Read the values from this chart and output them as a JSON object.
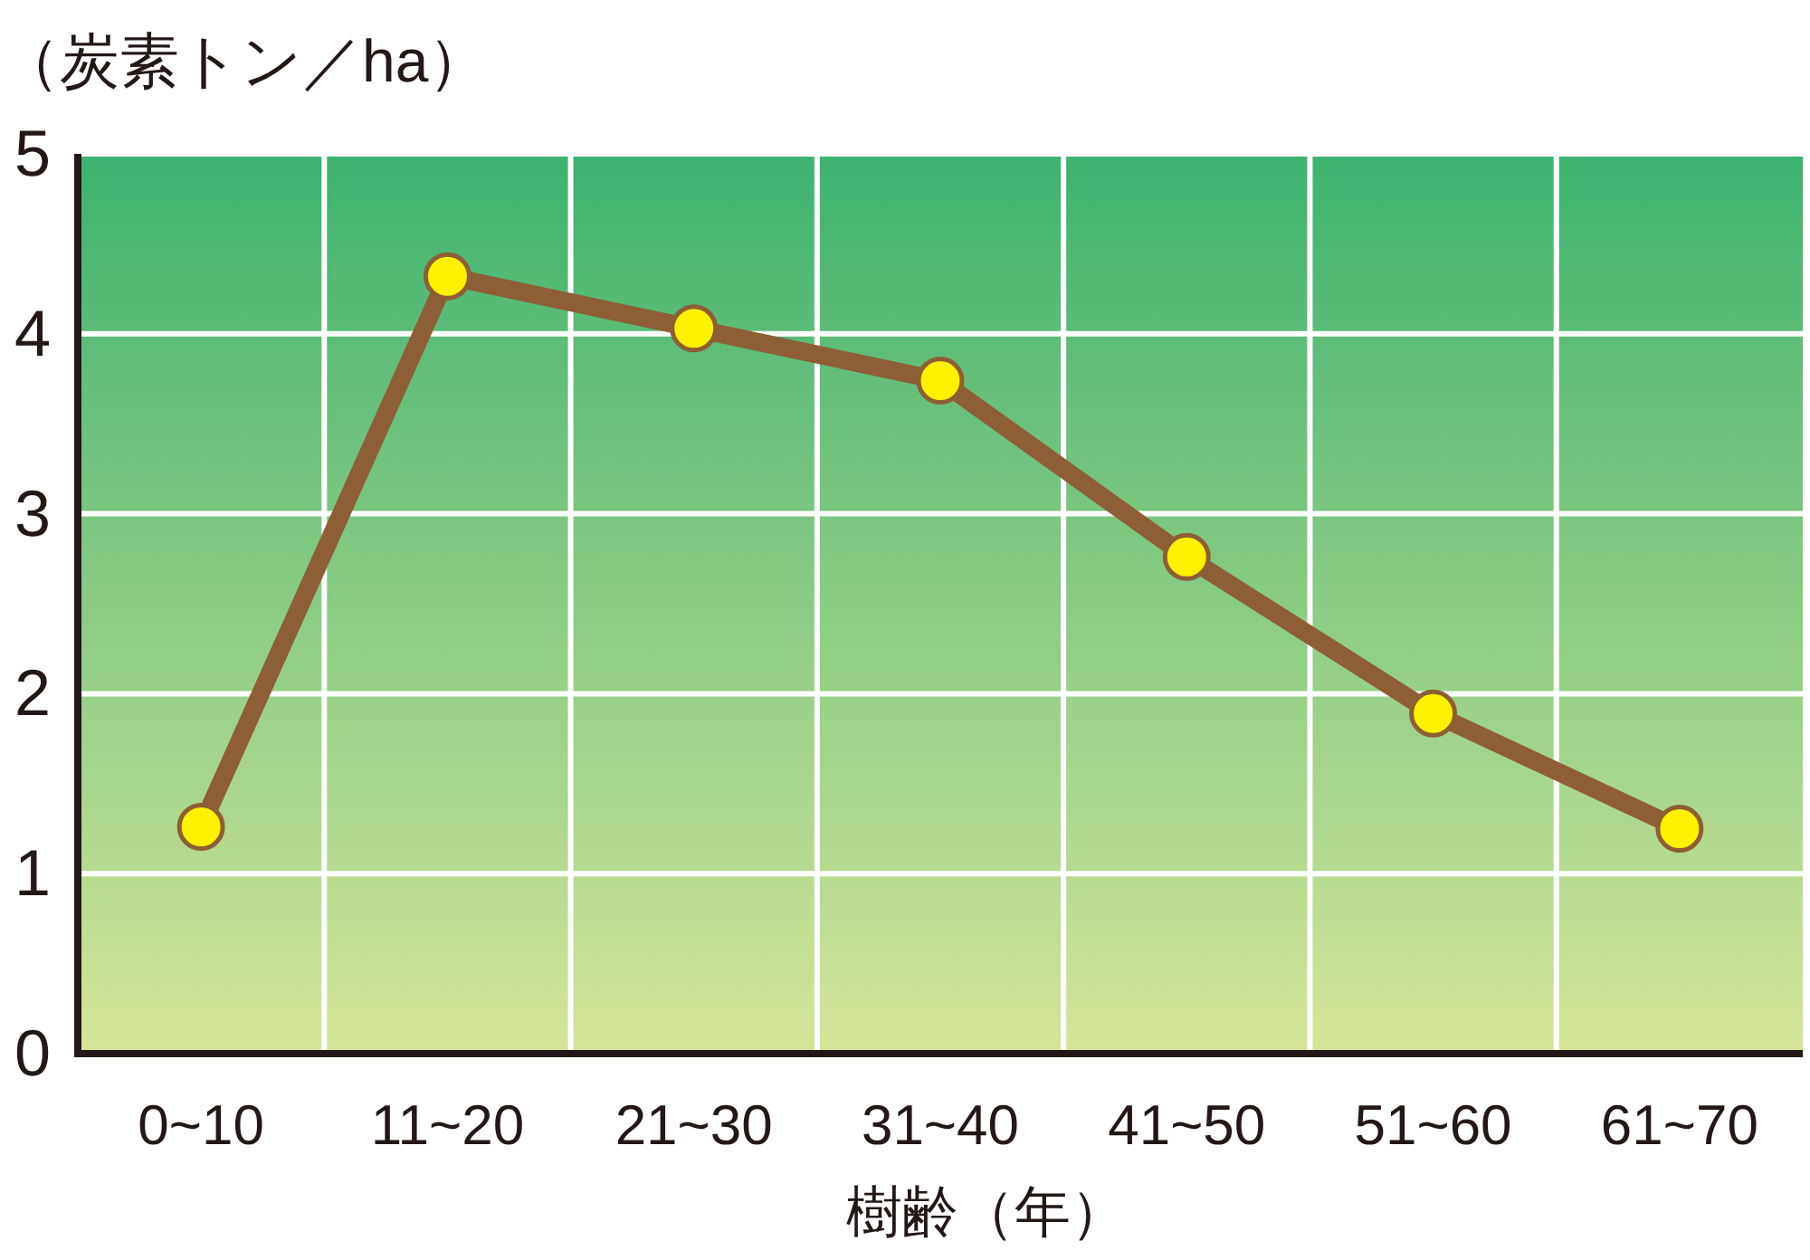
{
  "chart_data": {
    "type": "line",
    "ylabel": "（炭素トン／ha）",
    "xlabel": "樹齢（年）",
    "categories": [
      "0~10",
      "11~20",
      "21~30",
      "31~40",
      "41~50",
      "51~60",
      "61~70"
    ],
    "series": [
      {
        "color": "#8e5e34",
        "values": [
          1.26,
          4.32,
          4.03,
          3.74,
          2.76,
          1.89,
          1.25
        ]
      }
    ],
    "ylim": [
      0,
      5
    ],
    "yticks": [
      0,
      1,
      2,
      3,
      4,
      5
    ],
    "grid": true,
    "marker": "circle"
  }
}
